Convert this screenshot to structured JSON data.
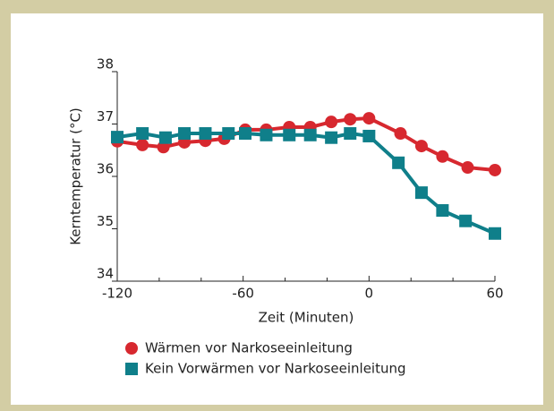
{
  "chart_data": {
    "type": "line",
    "xlabel": "Zeit (Minuten)",
    "ylabel": "Kerntemperatur (°C)",
    "xlim": [
      -120,
      60
    ],
    "xticks": [
      -120,
      -60,
      0,
      60
    ],
    "xticks_minor": [
      -100,
      -80,
      -40,
      -20,
      20,
      40
    ],
    "ylim": [
      34,
      38
    ],
    "yticks": [
      34,
      35,
      36,
      37,
      38
    ],
    "series": [
      {
        "name": "Wärmen vor Narkoseeinleitung",
        "color": "#d7282f",
        "marker": "circle",
        "x": [
          -120,
          -108,
          -98,
          -88,
          -78,
          -69,
          -59,
          -49,
          -38,
          -28,
          -18,
          -9,
          0,
          15,
          25,
          35,
          47,
          60
        ],
        "values": [
          36.67,
          36.6,
          36.56,
          36.65,
          36.68,
          36.72,
          36.89,
          36.89,
          36.94,
          36.94,
          37.04,
          37.09,
          37.11,
          36.82,
          36.58,
          36.38,
          36.17,
          36.12
        ]
      },
      {
        "name": "Kein Vorwärmen vor Narkoseeinleitung",
        "color": "#0f7f8a",
        "marker": "square",
        "x": [
          -120,
          -108,
          -97,
          -88,
          -78,
          -67,
          -59,
          -49,
          -38,
          -28,
          -18,
          -9,
          0,
          14,
          25,
          35,
          46,
          60
        ],
        "values": [
          36.75,
          36.82,
          36.74,
          36.82,
          36.82,
          36.82,
          36.82,
          36.79,
          36.79,
          36.79,
          36.74,
          36.82,
          36.77,
          36.26,
          35.69,
          35.35,
          35.15,
          34.91
        ]
      }
    ]
  }
}
